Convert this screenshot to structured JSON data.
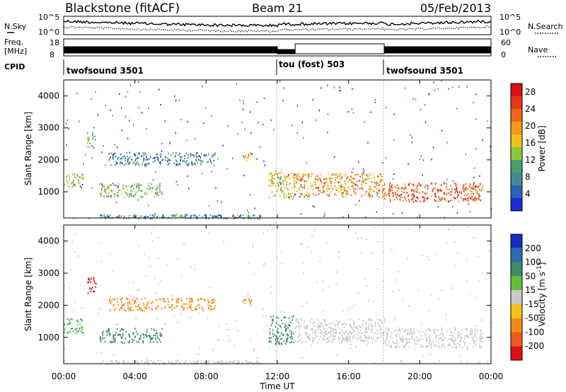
{
  "header": {
    "station": "Blackstone (fitACF)",
    "beam": "Beam 21",
    "date": "05/Feb/2013"
  },
  "status_panels": {
    "nsky_label": "N.Sky",
    "nsearch_label": "N.Search",
    "noise_ticks": [
      "10^5",
      "10^0"
    ],
    "freq_label_1": "Freq.",
    "freq_label_2": "[MHz]",
    "freq_ticks": [
      "18",
      "8"
    ],
    "nave_label": "Nave",
    "nave_ticks": [
      "60",
      "0"
    ],
    "cpid_label": "CPID",
    "cpid_segments": [
      {
        "name": "twofsound 3501",
        "start_hour": 0,
        "end_hour": 12
      },
      {
        "name": "tou (fost) 503",
        "start_hour": 12,
        "end_hour": 18
      },
      {
        "name": "twofsound 3501",
        "start_hour": 18,
        "end_hour": 24
      }
    ]
  },
  "chart_data": [
    {
      "type": "heatmap",
      "title": "",
      "xlabel": "",
      "ylabel": "Slant Range [km]",
      "xlim_hours": [
        0,
        24
      ],
      "ylim": [
        180,
        4500
      ],
      "yticks": [
        "1000",
        "2000",
        "3000",
        "4000"
      ],
      "colorbar": {
        "label": "Power [dB]",
        "ticks": [
          "4",
          "8",
          "12",
          "16",
          "20",
          "24",
          "28"
        ],
        "range": [
          0,
          30
        ],
        "colors": [
          "#1c2bd6",
          "#2f5fbf",
          "#3f8a8f",
          "#4aa06a",
          "#8cc63e",
          "#e9c21c",
          "#f39a1a",
          "#ef6418",
          "#e8341a",
          "#d81010"
        ]
      },
      "scatter_regions": [
        {
          "t0": 0.0,
          "t1": 1.1,
          "r0": 1150,
          "r1": 1600,
          "value": 14
        },
        {
          "t0": 1.3,
          "t1": 1.8,
          "r0": 2400,
          "r1": 2900,
          "value": 12
        },
        {
          "t0": 2.0,
          "t1": 5.5,
          "r0": 850,
          "r1": 1300,
          "value": 12
        },
        {
          "t0": 2.5,
          "t1": 8.5,
          "r0": 1850,
          "r1": 2250,
          "value": 7
        },
        {
          "t0": 10.0,
          "t1": 10.6,
          "r0": 2000,
          "r1": 2250,
          "value": 18
        },
        {
          "t0": 11.5,
          "t1": 12.9,
          "r0": 800,
          "r1": 1700,
          "value": 16
        },
        {
          "t0": 12.9,
          "t1": 18.0,
          "r0": 850,
          "r1": 1600,
          "value": 20
        },
        {
          "t0": 18.0,
          "t1": 23.5,
          "r0": 700,
          "r1": 1300,
          "value": 24
        }
      ]
    },
    {
      "type": "heatmap",
      "title": "",
      "xlabel": "Time UT",
      "ylabel": "Slant Range [km]",
      "xlim_hours": [
        0,
        24
      ],
      "ylim": [
        180,
        4500
      ],
      "xticks": [
        "00:00",
        "04:00",
        "08:00",
        "12:00",
        "16:00",
        "20:00",
        "00:00"
      ],
      "yticks": [
        "1000",
        "2000",
        "3000",
        "4000"
      ],
      "colorbar": {
        "label": "Velocity [m s^-1]",
        "ticks": [
          "200",
          "100",
          "50",
          "15",
          "-15",
          "-50",
          "-100",
          "-200"
        ],
        "colors": [
          "#1a2bbf",
          "#2f6bb0",
          "#3f8a6a",
          "#5fbf3a",
          "#c8c8c8",
          "#f2c21a",
          "#f28a1a",
          "#ee5a18",
          "#e01010"
        ]
      },
      "scatter_regions": [
        {
          "t0": 0.0,
          "t1": 1.1,
          "r0": 1150,
          "r1": 1600,
          "value": 30
        },
        {
          "t0": 1.3,
          "t1": 1.8,
          "r0": 2400,
          "r1": 2900,
          "value": -200
        },
        {
          "t0": 2.0,
          "t1": 5.5,
          "r0": 850,
          "r1": 1300,
          "value": 60
        },
        {
          "t0": 2.5,
          "t1": 8.5,
          "r0": 1850,
          "r1": 2250,
          "value": -40
        },
        {
          "t0": 10.0,
          "t1": 10.6,
          "r0": 2000,
          "r1": 2250,
          "value": -60
        },
        {
          "t0": 11.5,
          "t1": 12.9,
          "r0": 800,
          "r1": 1700,
          "value": 50
        },
        {
          "t0": 12.9,
          "t1": 18.0,
          "r0": 850,
          "r1": 1600,
          "value": 0
        },
        {
          "t0": 18.0,
          "t1": 23.5,
          "r0": 700,
          "r1": 1300,
          "value": 0
        }
      ]
    }
  ]
}
